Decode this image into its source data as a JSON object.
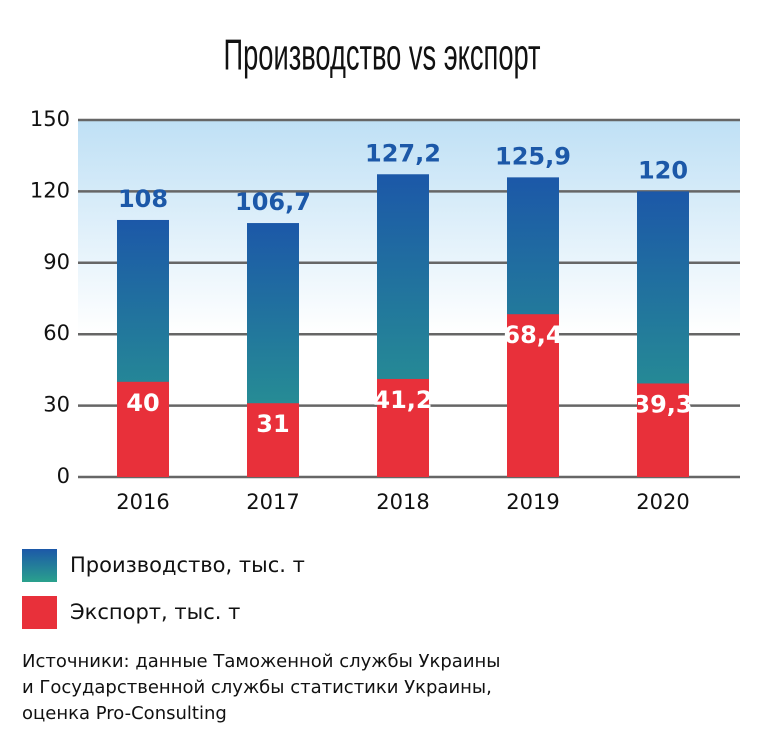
{
  "chart_data": {
    "type": "overlap-bar",
    "title": "Производство vs экспорт",
    "categories": [
      "2016",
      "2017",
      "2018",
      "2019",
      "2020"
    ],
    "series": [
      {
        "name": "Производство, тыс. т",
        "gradient": [
          "#1c58a8",
          "#2aa18d"
        ],
        "values": [
          108,
          106.7,
          127.2,
          125.9,
          120
        ],
        "value_labels": [
          "108",
          "106,7",
          "127,2",
          "125,9",
          "120"
        ],
        "label_color": "#1c58a8"
      },
      {
        "name": "Экспорт, тыс. т",
        "color": "#e8303a",
        "values": [
          40,
          31,
          41.2,
          68.4,
          39.3
        ],
        "value_labels": [
          "40",
          "31",
          "41,2",
          "68,4",
          "39,3"
        ],
        "label_color": "#ffffff"
      }
    ],
    "ylim": [
      0,
      150
    ],
    "yticks": [
      0,
      30,
      60,
      90,
      120,
      150
    ],
    "grid": true,
    "source": [
      "Источники: данные Таможенной службы Украины",
      "и Государственной службы статистики Украины,",
      "оценка Pro-Consulting"
    ]
  }
}
